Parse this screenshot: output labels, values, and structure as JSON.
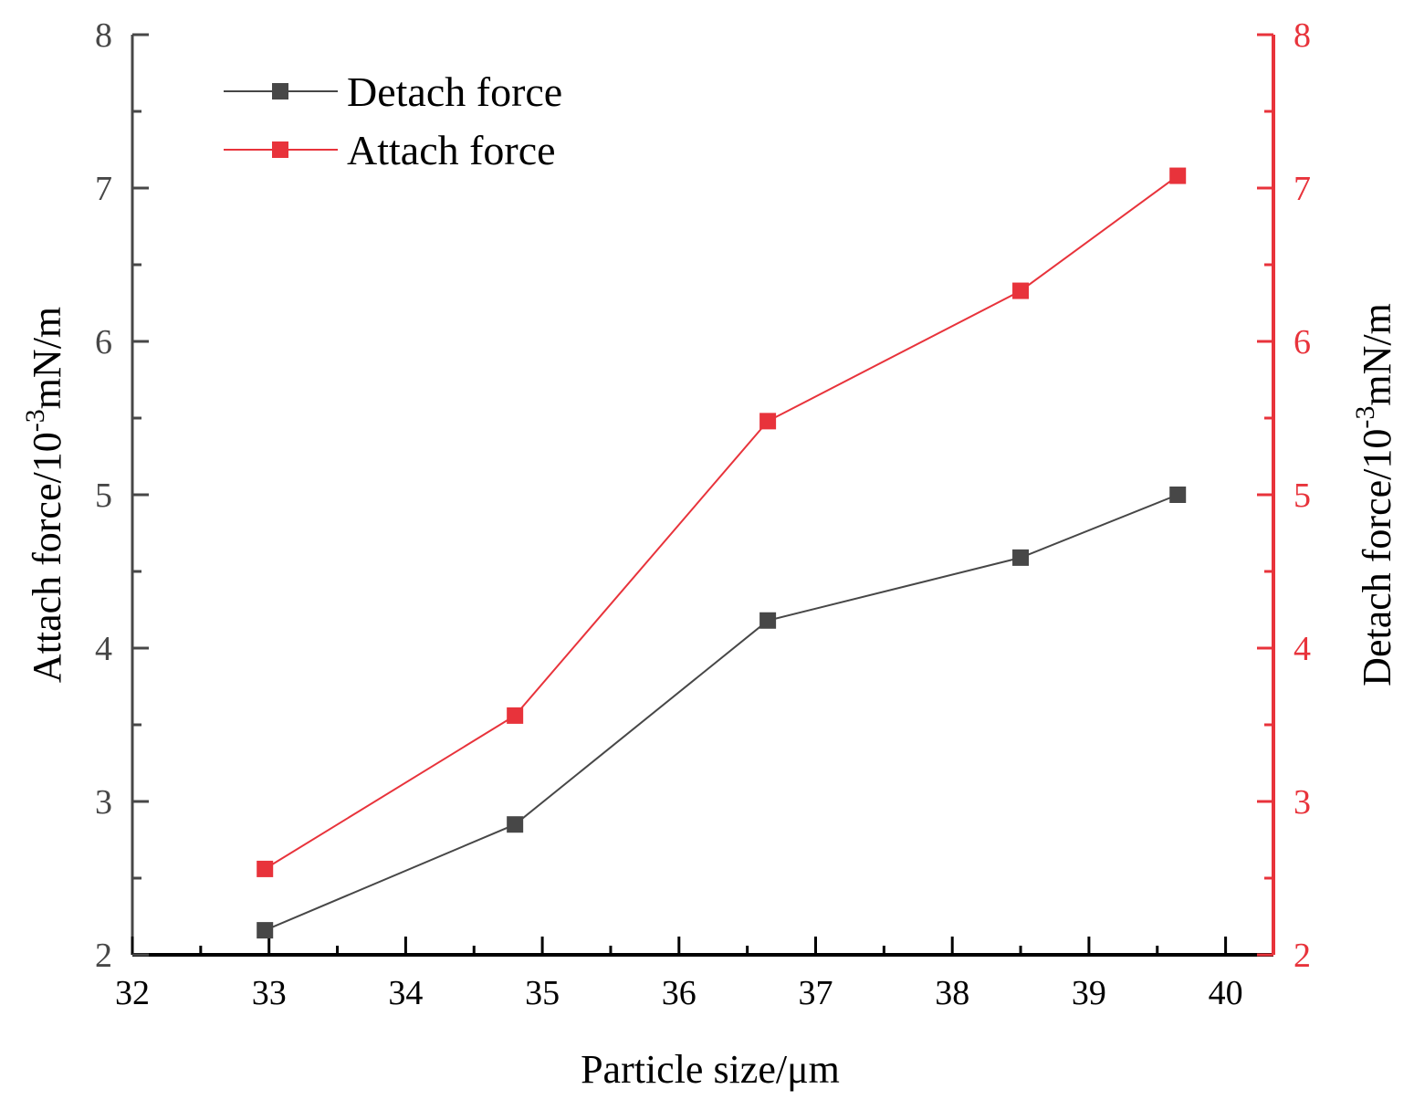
{
  "chart_data": {
    "type": "line",
    "x": [
      32.97,
      34.8,
      36.65,
      38.5,
      39.65
    ],
    "xlim": [
      32,
      40.35
    ],
    "xticks_major": [
      32,
      33,
      34,
      35,
      36,
      37,
      38,
      39,
      40
    ],
    "xticks_minor": [
      32.5,
      33.5,
      34.5,
      35.5,
      36.5,
      37.5,
      38.5,
      39.5
    ],
    "xlabel": "Particle size/μm",
    "ylim": [
      2,
      8
    ],
    "yticks": [
      2,
      3,
      4,
      5,
      6,
      7,
      8
    ],
    "y_left_label": {
      "prefix": "Attach force/10",
      "exponent": "-3",
      "suffix": "mN/m"
    },
    "y_right_label": {
      "prefix": "Detach force/10",
      "exponent": "-3",
      "suffix": "mN/m"
    },
    "series": [
      {
        "name": "Detach force",
        "color": "#474747",
        "marker": "square",
        "values": [
          2.16,
          2.85,
          4.18,
          4.59,
          5.0
        ]
      },
      {
        "name": "Attach force",
        "color": "#e8333b",
        "marker": "square",
        "values": [
          2.56,
          3.56,
          5.48,
          6.33,
          7.08
        ]
      }
    ],
    "legend_position": "top-left",
    "grid": false,
    "left_axis_color": "#474747",
    "right_axis_color": "#e8333b"
  }
}
